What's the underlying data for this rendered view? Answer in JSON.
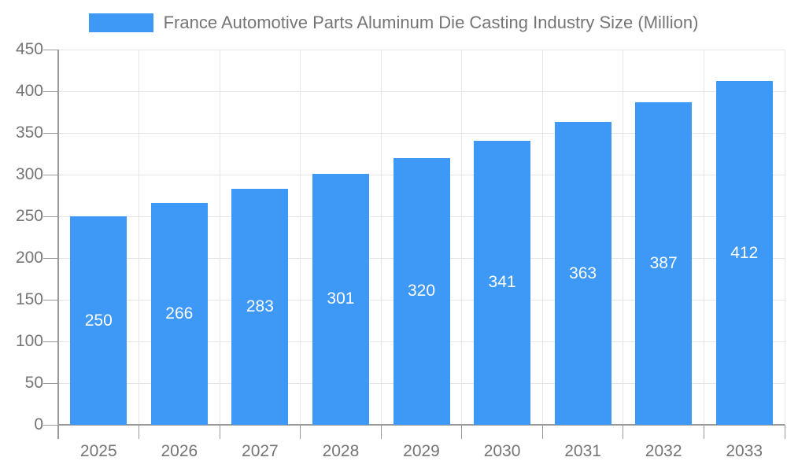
{
  "chart_data": {
    "type": "bar",
    "title": "France Automotive Parts Aluminum Die Casting Industry Size (Million)",
    "legend": [
      "France Automotive Parts Aluminum Die Casting Industry Size (Million)"
    ],
    "legend_position": "top",
    "categories": [
      "2025",
      "2026",
      "2027",
      "2028",
      "2029",
      "2030",
      "2031",
      "2032",
      "2033"
    ],
    "values": [
      250,
      266,
      283,
      301,
      320,
      341,
      363,
      387,
      412
    ],
    "value_labels_shown": true,
    "xlabel": "",
    "ylabel": "",
    "ylim": [
      0,
      450
    ],
    "ytick_step": 50,
    "yticks": [
      0,
      50,
      100,
      150,
      200,
      250,
      300,
      350,
      400,
      450
    ],
    "grid": true,
    "colors": {
      "bar": "#3D99F5",
      "value_label": "#FFFFFF",
      "axis": "#999999",
      "gridline": "#E6E6E6",
      "text": "#757575"
    }
  }
}
